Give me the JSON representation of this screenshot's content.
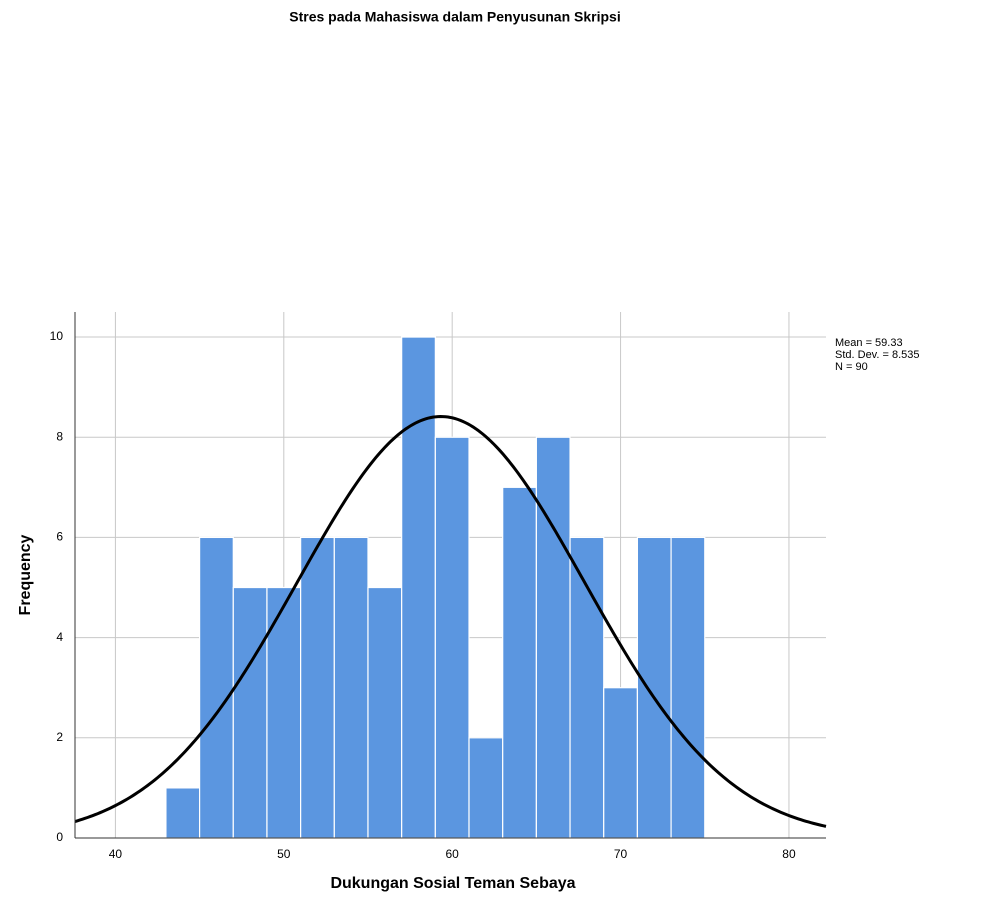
{
  "chart_data": {
    "type": "histogram",
    "title": "Stres pada Mahasiswa dalam Penyusunan Skripsi",
    "x_label": "Dukungan Sosial Teman Sebaya",
    "y_label": "Frequency",
    "bins": [
      43,
      45,
      47,
      49,
      51,
      53,
      55,
      57,
      59,
      61,
      63,
      65,
      67,
      69,
      71,
      73,
      75
    ],
    "values": [
      1,
      6,
      5,
      5,
      6,
      6,
      5,
      10,
      8,
      2,
      7,
      8,
      6,
      3,
      6,
      6
    ],
    "color": "#5b96e0",
    "xlim": [
      37.6,
      82.2
    ],
    "xticks": [
      40,
      50,
      60,
      70,
      80
    ],
    "ylim": [
      0,
      10.5
    ],
    "yticks": [
      0,
      2,
      4,
      6,
      8,
      10
    ],
    "grid": true,
    "normal_curve": true,
    "stats": {
      "mean": {
        "value": 59.33,
        "label": "Mean = 59.33"
      },
      "sd": {
        "value": 8.535,
        "label": "Std. Dev. = 8.535"
      },
      "n": {
        "value": 90,
        "label": "N = 90"
      }
    }
  }
}
